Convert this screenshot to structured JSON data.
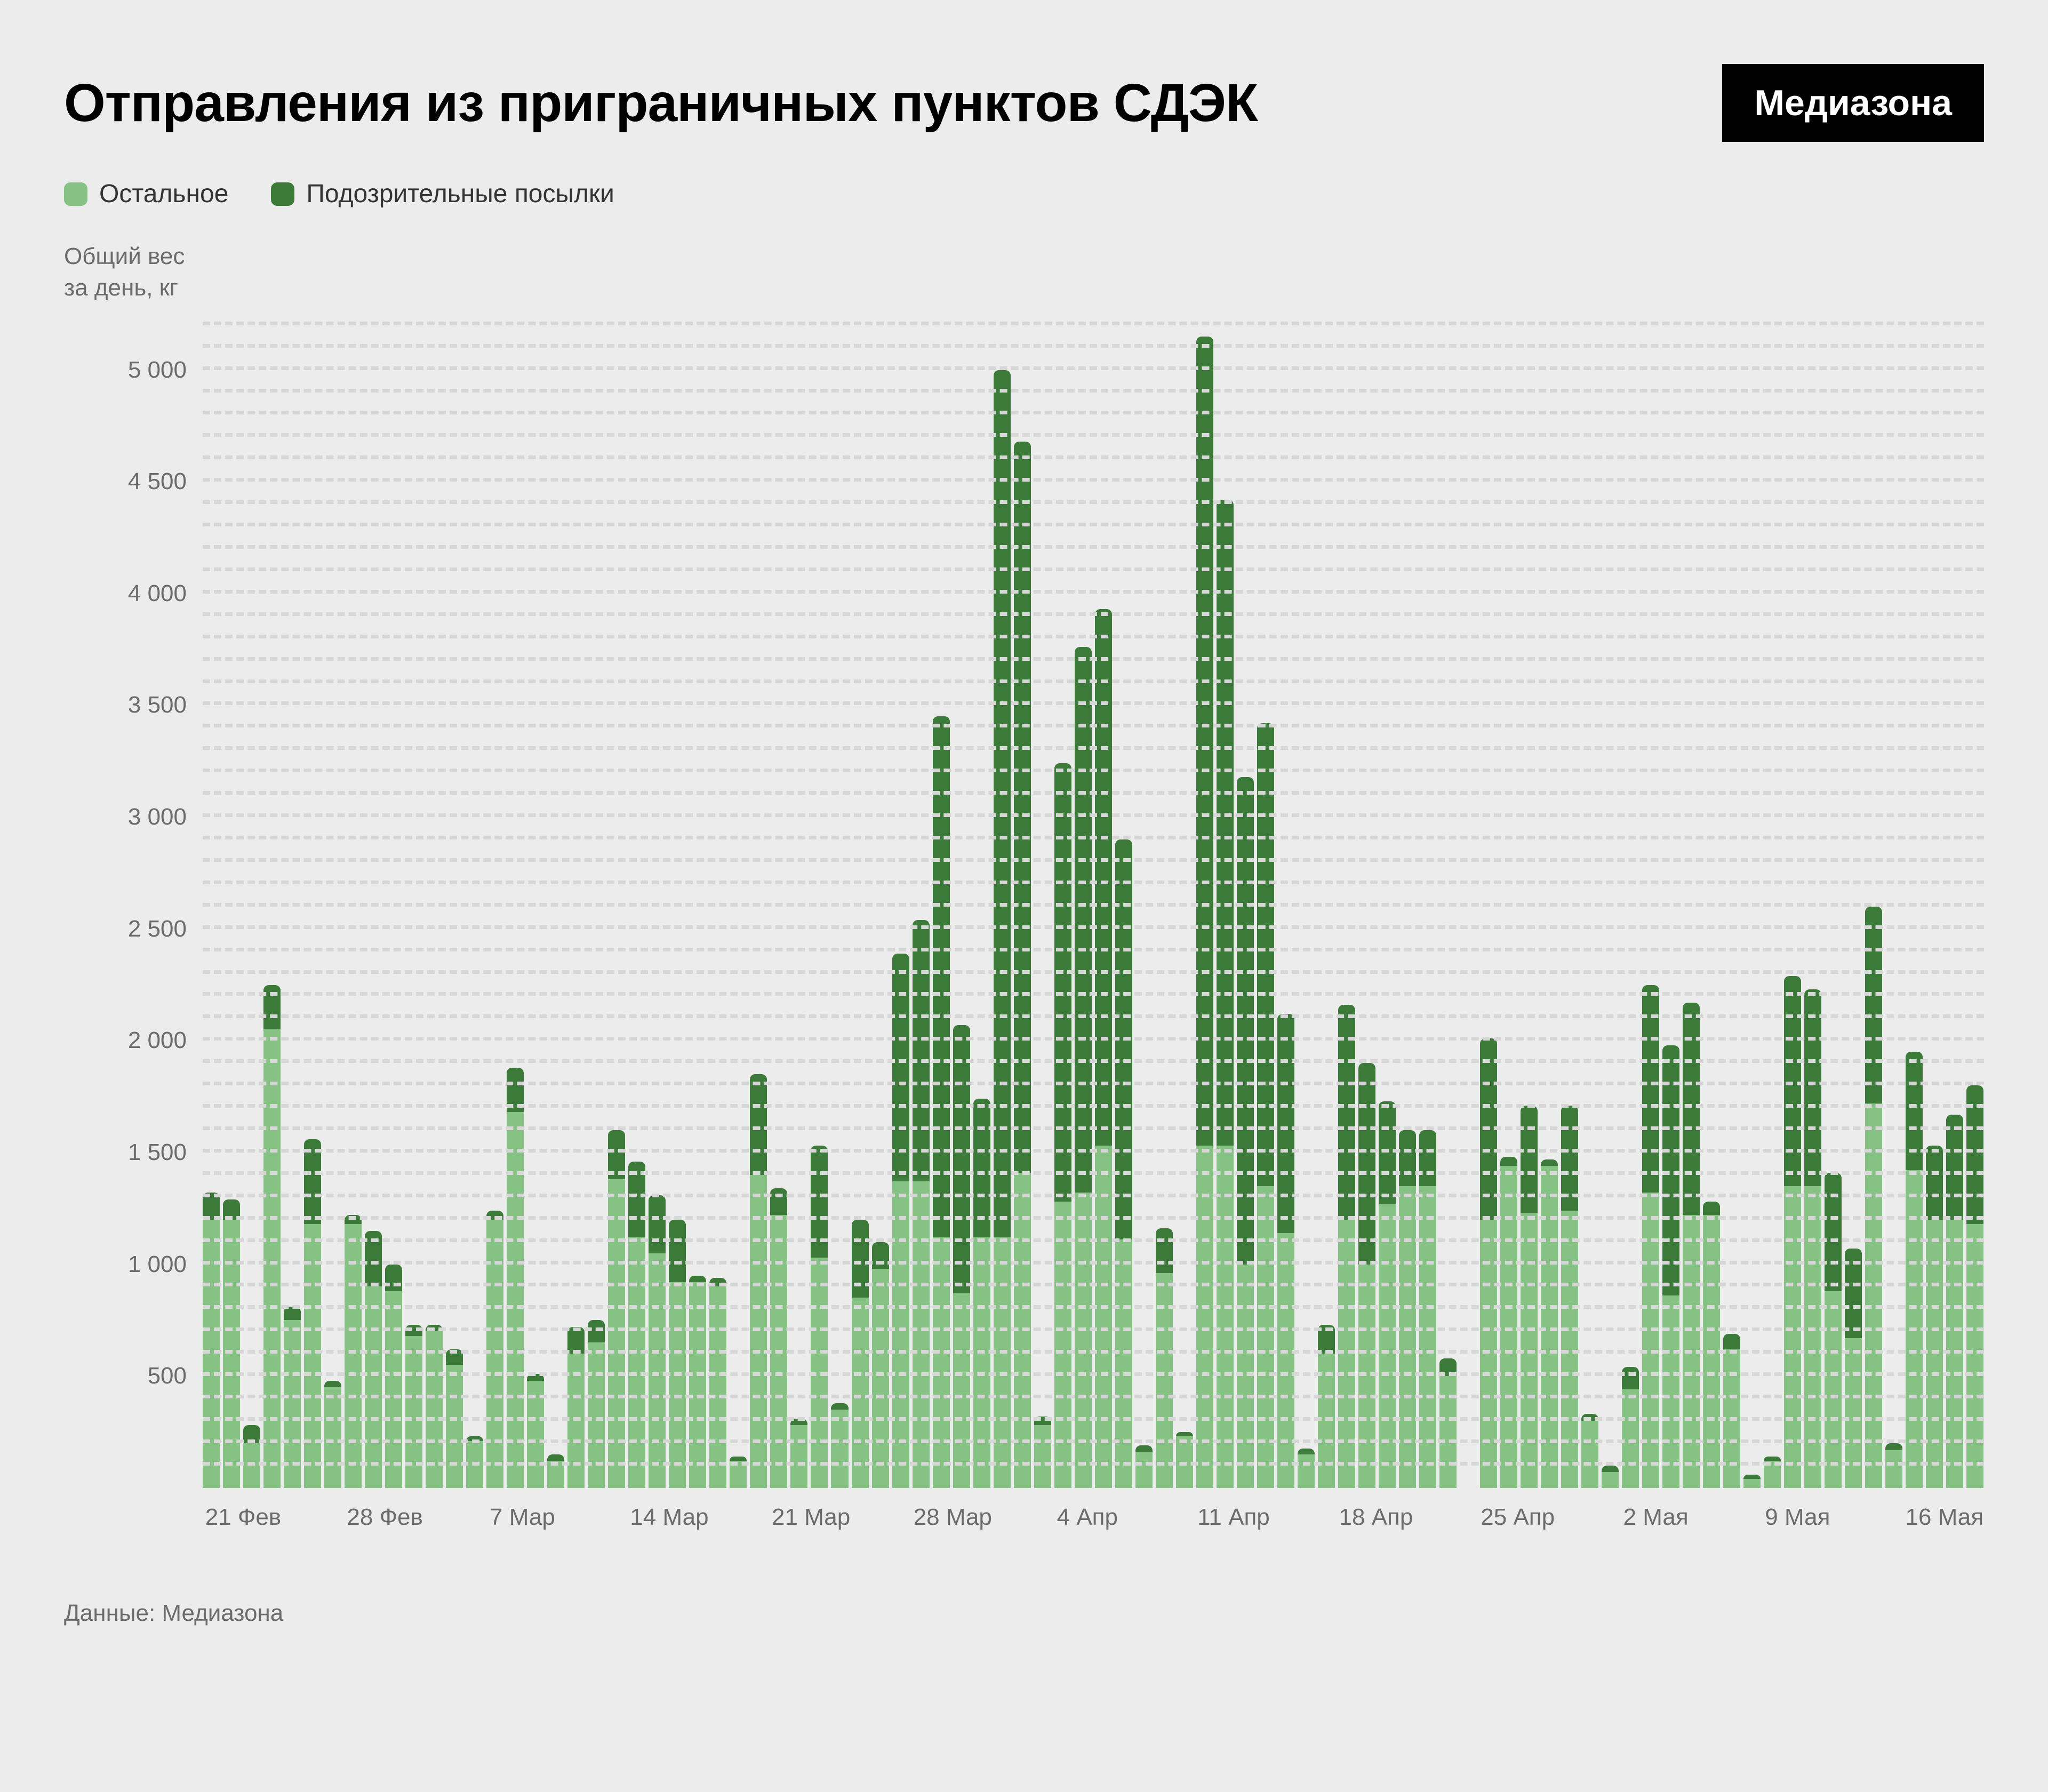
{
  "title": "Отправления из приграничных пунктов СДЭК",
  "brand": "Медиазона",
  "legend": {
    "series1": {
      "label": "Остальное",
      "color": "#86c283"
    },
    "series2": {
      "label": "Подозрительные посылки",
      "color": "#3b7a38"
    }
  },
  "axis_title_line1": "Общий вес",
  "axis_title_line2": "за день, кг",
  "source": "Данные: Медиазона",
  "chart": {
    "type": "stacked-bar",
    "background_color": "#ececec",
    "grid_color": "#d7d7d7",
    "y": {
      "min": 0,
      "max": 5200,
      "ticks": [
        500,
        1000,
        1500,
        2000,
        2500,
        3000,
        3500,
        4000,
        4500,
        5000
      ],
      "tick_labels": [
        "500",
        "1 000",
        "1 500",
        "2 000",
        "2 500",
        "3 000",
        "3 500",
        "4 000",
        "4 500",
        "5 000"
      ],
      "grid_step": 100
    },
    "color_bottom": "#86c283",
    "color_top": "#3b7a38",
    "bar_radius": 10,
    "label_fontsize": 44,
    "label_color": "#6b6b6b",
    "x_ticks": [
      {
        "index": 0,
        "label": "21 Фев"
      },
      {
        "index": 7,
        "label": "28 Фев"
      },
      {
        "index": 14,
        "label": "7 Мар"
      },
      {
        "index": 21,
        "label": "14 Мар"
      },
      {
        "index": 28,
        "label": "21 Мар"
      },
      {
        "index": 35,
        "label": "28 Мар"
      },
      {
        "index": 42,
        "label": "4 Апр"
      },
      {
        "index": 49,
        "label": "11 Апр"
      },
      {
        "index": 56,
        "label": "18 Апр"
      },
      {
        "index": 63,
        "label": "25 Апр"
      },
      {
        "index": 70,
        "label": "2 Мая"
      },
      {
        "index": 77,
        "label": "9 Мая"
      },
      {
        "index": 84,
        "label": "16 Мая"
      }
    ],
    "data": [
      {
        "bottom": 1200,
        "top": 120
      },
      {
        "bottom": 1200,
        "top": 90
      },
      {
        "bottom": 200,
        "top": 80
      },
      {
        "bottom": 2050,
        "top": 200
      },
      {
        "bottom": 750,
        "top": 60
      },
      {
        "bottom": 1180,
        "top": 380
      },
      {
        "bottom": 450,
        "top": 30
      },
      {
        "bottom": 1180,
        "top": 40
      },
      {
        "bottom": 900,
        "top": 250
      },
      {
        "bottom": 880,
        "top": 120
      },
      {
        "bottom": 680,
        "top": 50
      },
      {
        "bottom": 700,
        "top": 30
      },
      {
        "bottom": 550,
        "top": 70
      },
      {
        "bottom": 210,
        "top": 20
      },
      {
        "bottom": 1200,
        "top": 40
      },
      {
        "bottom": 1680,
        "top": 200
      },
      {
        "bottom": 480,
        "top": 30
      },
      {
        "bottom": 120,
        "top": 30
      },
      {
        "bottom": 600,
        "top": 120
      },
      {
        "bottom": 650,
        "top": 100
      },
      {
        "bottom": 1380,
        "top": 220
      },
      {
        "bottom": 1120,
        "top": 340
      },
      {
        "bottom": 1050,
        "top": 260
      },
      {
        "bottom": 920,
        "top": 280
      },
      {
        "bottom": 920,
        "top": 30
      },
      {
        "bottom": 900,
        "top": 40
      },
      {
        "bottom": 120,
        "top": 20
      },
      {
        "bottom": 1400,
        "top": 450
      },
      {
        "bottom": 1220,
        "top": 120
      },
      {
        "bottom": 280,
        "top": 30
      },
      {
        "bottom": 1030,
        "top": 500
      },
      {
        "bottom": 350,
        "top": 30
      },
      {
        "bottom": 850,
        "top": 350
      },
      {
        "bottom": 980,
        "top": 120
      },
      {
        "bottom": 1370,
        "top": 1020
      },
      {
        "bottom": 1370,
        "top": 1170
      },
      {
        "bottom": 1120,
        "top": 2330
      },
      {
        "bottom": 870,
        "top": 1200
      },
      {
        "bottom": 1120,
        "top": 620
      },
      {
        "bottom": 1120,
        "top": 3880
      },
      {
        "bottom": 1410,
        "top": 3270
      },
      {
        "bottom": 280,
        "top": 40
      },
      {
        "bottom": 1280,
        "top": 1960
      },
      {
        "bottom": 1320,
        "top": 2440
      },
      {
        "bottom": 1530,
        "top": 2400
      },
      {
        "bottom": 1110,
        "top": 1790
      },
      {
        "bottom": 160,
        "top": 30
      },
      {
        "bottom": 960,
        "top": 200
      },
      {
        "bottom": 230,
        "top": 20
      },
      {
        "bottom": 1530,
        "top": 3620
      },
      {
        "bottom": 1530,
        "top": 2890
      },
      {
        "bottom": 1000,
        "top": 2180
      },
      {
        "bottom": 1350,
        "top": 2070
      },
      {
        "bottom": 1140,
        "top": 980
      },
      {
        "bottom": 150,
        "top": 25
      },
      {
        "bottom": 600,
        "top": 130
      },
      {
        "bottom": 1200,
        "top": 960
      },
      {
        "bottom": 1000,
        "top": 900
      },
      {
        "bottom": 1270,
        "top": 460
      },
      {
        "bottom": 1350,
        "top": 250
      },
      {
        "bottom": 1350,
        "top": 250
      },
      {
        "bottom": 500,
        "top": 80
      },
      {
        "bottom": 0,
        "top": 0
      },
      {
        "bottom": 1200,
        "top": 810
      },
      {
        "bottom": 1440,
        "top": 40
      },
      {
        "bottom": 1230,
        "top": 480
      },
      {
        "bottom": 1440,
        "top": 30
      },
      {
        "bottom": 1240,
        "top": 470
      },
      {
        "bottom": 300,
        "top": 30
      },
      {
        "bottom": 70,
        "top": 30
      },
      {
        "bottom": 440,
        "top": 100
      },
      {
        "bottom": 1320,
        "top": 930
      },
      {
        "bottom": 860,
        "top": 1120
      },
      {
        "bottom": 1220,
        "top": 950
      },
      {
        "bottom": 1220,
        "top": 60
      },
      {
        "bottom": 620,
        "top": 70
      },
      {
        "bottom": 40,
        "top": 20
      },
      {
        "bottom": 120,
        "top": 20
      },
      {
        "bottom": 1350,
        "top": 940
      },
      {
        "bottom": 1350,
        "top": 880
      },
      {
        "bottom": 880,
        "top": 530
      },
      {
        "bottom": 670,
        "top": 400
      },
      {
        "bottom": 1720,
        "top": 880
      },
      {
        "bottom": 170,
        "top": 30
      },
      {
        "bottom": 1420,
        "top": 530
      },
      {
        "bottom": 1200,
        "top": 330
      },
      {
        "bottom": 1200,
        "top": 470
      },
      {
        "bottom": 1180,
        "top": 620
      }
    ]
  }
}
